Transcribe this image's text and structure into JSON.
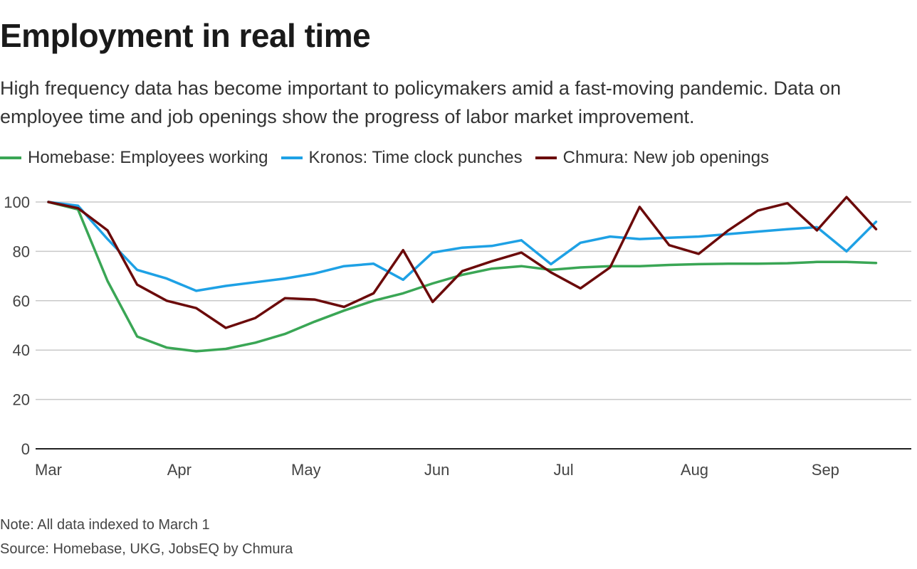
{
  "header": {
    "title": "Employment in real time",
    "subtitle": "High frequency data has become important to policymakers amid a fast-moving pandemic. Data on employee time and job openings show the progress of labor market improvement."
  },
  "legend": [
    {
      "label": "Homebase: Employees working",
      "color": "#3aa655"
    },
    {
      "label": "Kronos: Time clock punches",
      "color": "#1ea1e5"
    },
    {
      "label": "Chmura: New job openings",
      "color": "#6b0a0a"
    }
  ],
  "chart_data": {
    "type": "line",
    "title": "Employment in real time",
    "x": [
      "2020-03-01",
      "2020-03-08",
      "2020-03-15",
      "2020-03-22",
      "2020-03-29",
      "2020-04-05",
      "2020-04-12",
      "2020-04-19",
      "2020-04-26",
      "2020-05-03",
      "2020-05-10",
      "2020-05-17",
      "2020-05-24",
      "2020-05-31",
      "2020-06-07",
      "2020-06-14",
      "2020-06-21",
      "2020-06-28",
      "2020-07-05",
      "2020-07-12",
      "2020-07-19",
      "2020-07-26",
      "2020-08-02",
      "2020-08-09",
      "2020-08-16",
      "2020-08-23",
      "2020-08-30",
      "2020-09-06",
      "2020-09-13"
    ],
    "series": [
      {
        "name": "Homebase: Employees working",
        "color": "#3aa655",
        "values": [
          100,
          97,
          68,
          45.5,
          41,
          39.5,
          40.5,
          43,
          46.5,
          51.5,
          56,
          60,
          63,
          67,
          70.5,
          73,
          74,
          72.5,
          73.5,
          74,
          74,
          74.5,
          74.8,
          75,
          75,
          75.2,
          75.7,
          75.7,
          75.3
        ]
      },
      {
        "name": "Kronos: Time clock punches",
        "color": "#1ea1e5",
        "values": [
          100,
          98.5,
          85,
          72.5,
          69,
          64,
          66,
          67.5,
          69,
          71,
          74,
          75,
          68.5,
          79.5,
          81.5,
          82.2,
          84.5,
          74.8,
          83.5,
          86,
          85,
          85.5,
          86,
          87,
          88,
          89,
          89.8,
          80,
          92
        ]
      },
      {
        "name": "Chmura: New job openings",
        "color": "#6b0a0a",
        "values": [
          100,
          97.5,
          88.5,
          66.5,
          60,
          57,
          49,
          53,
          61,
          60.5,
          57.5,
          63,
          80.5,
          59.5,
          72,
          76,
          79.5,
          71.5,
          65,
          73.5,
          98,
          82.5,
          79,
          88.5,
          96.5,
          99.5,
          88.5,
          102,
          89
        ]
      }
    ],
    "x_ticks": [
      "Mar",
      "Apr",
      "May",
      "Jun",
      "Jul",
      "Aug",
      "Sep"
    ],
    "y_ticks": [
      0,
      20,
      40,
      60,
      80,
      100
    ],
    "ylim": [
      0,
      100
    ],
    "grid": true,
    "legend_position": "top-left"
  },
  "footer": {
    "note": "Note: All data indexed to March 1",
    "source": "Source: Homebase, UKG, JobsEQ by Chmura"
  }
}
